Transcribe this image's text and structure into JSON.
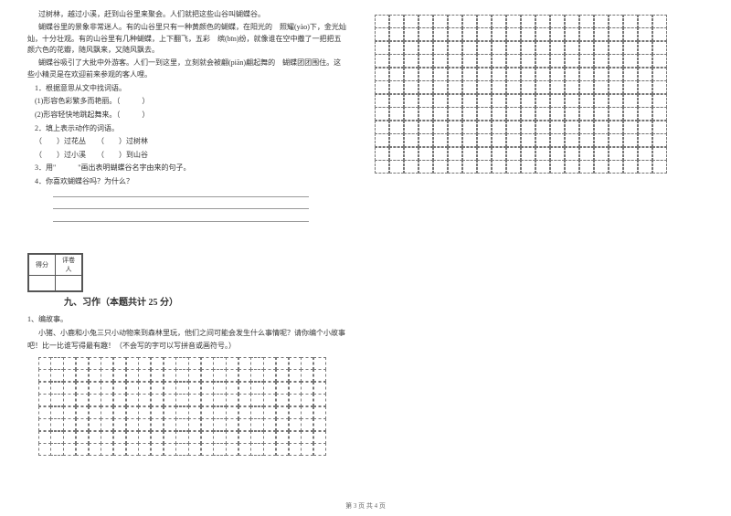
{
  "passage": {
    "p1": "过树林，越过小溪，赶到山谷里来聚会。人们就把这些山谷叫蝴蝶谷。",
    "p2": "蝴蝶谷里的景象非常迷人。有的山谷里只有一种黄颜色的蝴蝶，在阳光的　照耀(yào)下，金光灿灿，十分壮观。有的山谷里有几种蝴蝶，上下翻飞，五彩　缤(bīn)纷，就像谁在空中撒了一把把五颜六色的花瓣，随风飘来，又随风飘去。",
    "p3": "蝴蝶谷吸引了大批中外游客。人们一到这里，立刻就会被翩(piān)翩起舞的　蝴蝶团团围住。这些小精灵是在欢迎前来参观的客人哩。"
  },
  "questions": {
    "q1": "1．根据意思从文中找词语。",
    "q1a": "(1)形容色彩繁多而艳丽。（　　　）",
    "q1b": "(2)形容轻快地跳起舞来。（　　　）",
    "q2": "2．填上表示动作的词语。",
    "q2a": "（　　）过花丛　　（　　）过树林",
    "q2b": "（　　）过小溪　　（　　）到山谷",
    "q3": "3．用\"　　　\"画出表明蝴蝶谷名字由来的句子。",
    "q4": "4．你喜欢蝴蝶谷吗？为什么？"
  },
  "section": {
    "scoreHeader1": "得分",
    "scoreHeader2": "评卷人",
    "title": "九、习作（本题共计 25 分）"
  },
  "writing": {
    "num": "1、编故事。",
    "prompt1": "小猪、小鹿和小兔三只小动物来到森林里玩，他们之间可能会发生什么事情呢？请你编个小故事吧！比一比谁写得最有趣！（不会写的字可以写拼音或画符号。）"
  },
  "footer": "第 3 页 共 4 页",
  "grid": {
    "leftRows": 8,
    "leftCols": 23,
    "rightRows": 12,
    "rightCols": 20
  },
  "colors": {
    "text": "#333333",
    "gridBorder": "#777777"
  }
}
